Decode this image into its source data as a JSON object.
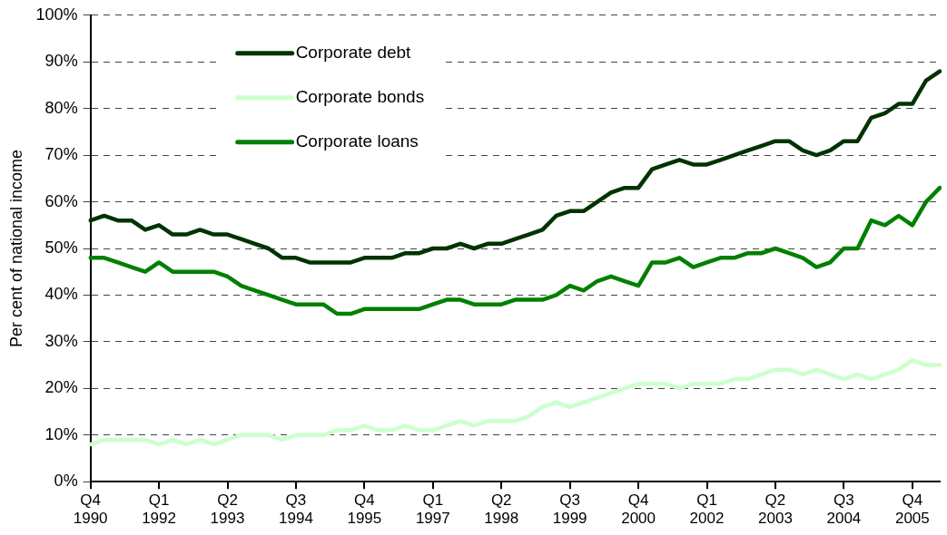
{
  "chart_data": {
    "type": "line",
    "ylabel": "Per cent of national income",
    "categories": [
      "Q4\n1990",
      null,
      null,
      null,
      null,
      "Q1\n1992",
      null,
      null,
      null,
      null,
      "Q2\n1993",
      null,
      null,
      null,
      null,
      "Q3\n1994",
      null,
      null,
      null,
      null,
      "Q4\n1995",
      null,
      null,
      null,
      null,
      "Q1\n1997",
      null,
      null,
      null,
      null,
      "Q2\n1998",
      null,
      null,
      null,
      null,
      "Q3\n1999",
      null,
      null,
      null,
      null,
      "Q4\n2000",
      null,
      null,
      null,
      null,
      "Q1\n2002",
      null,
      null,
      null,
      null,
      "Q2\n2003",
      null,
      null,
      null,
      null,
      "Q3\n2004",
      null,
      null,
      null,
      null,
      "Q4\n2005",
      null,
      null
    ],
    "series": [
      {
        "name": "Corporate debt",
        "color": "#003300",
        "values": [
          56,
          57,
          56,
          56,
          54,
          55,
          53,
          53,
          54,
          53,
          53,
          52,
          51,
          50,
          48,
          48,
          47,
          47,
          47,
          47,
          48,
          48,
          48,
          49,
          49,
          50,
          50,
          51,
          50,
          51,
          51,
          52,
          53,
          54,
          57,
          58,
          58,
          60,
          62,
          63,
          63,
          67,
          68,
          69,
          68,
          68,
          69,
          70,
          71,
          72,
          73,
          73,
          71,
          70,
          71,
          73,
          73,
          78,
          79,
          81,
          81,
          86,
          88
        ]
      },
      {
        "name": "Corporate bonds",
        "color": "#ccffcc",
        "values": [
          8,
          9,
          9,
          9,
          9,
          8,
          9,
          8,
          9,
          8,
          9,
          10,
          10,
          10,
          9,
          10,
          10,
          10,
          11,
          11,
          12,
          11,
          11,
          12,
          11,
          11,
          12,
          13,
          12,
          13,
          13,
          13,
          14,
          16,
          17,
          16,
          17,
          18,
          19,
          20,
          21,
          21,
          21,
          20,
          21,
          21,
          21,
          22,
          22,
          23,
          24,
          24,
          23,
          24,
          23,
          22,
          23,
          22,
          23,
          24,
          26,
          25,
          25
        ]
      },
      {
        "name": "Corporate loans",
        "color": "#008000",
        "values": [
          48,
          48,
          47,
          46,
          45,
          47,
          45,
          45,
          45,
          45,
          44,
          42,
          41,
          40,
          39,
          38,
          38,
          38,
          36,
          36,
          37,
          37,
          37,
          37,
          37,
          38,
          39,
          39,
          38,
          38,
          38,
          39,
          39,
          39,
          40,
          42,
          41,
          43,
          44,
          43,
          42,
          47,
          47,
          48,
          46,
          47,
          48,
          48,
          49,
          49,
          50,
          49,
          48,
          46,
          47,
          50,
          50,
          56,
          55,
          57,
          55,
          60,
          63
        ]
      }
    ],
    "ylim": [
      0,
      100
    ],
    "yticks": [
      {
        "value": 0,
        "label": "0%"
      },
      {
        "value": 10,
        "label": "10%"
      },
      {
        "value": 20,
        "label": "20%"
      },
      {
        "value": 30,
        "label": "30%"
      },
      {
        "value": 40,
        "label": "40%"
      },
      {
        "value": 50,
        "label": "50%"
      },
      {
        "value": 60,
        "label": "60%"
      },
      {
        "value": 70,
        "label": "70%"
      },
      {
        "value": 80,
        "label": "80%"
      },
      {
        "value": 90,
        "label": "90%"
      },
      {
        "value": 100,
        "label": "100%"
      }
    ],
    "grid": "y",
    "legend": "top left",
    "line_style": "solid",
    "marker": "none"
  }
}
